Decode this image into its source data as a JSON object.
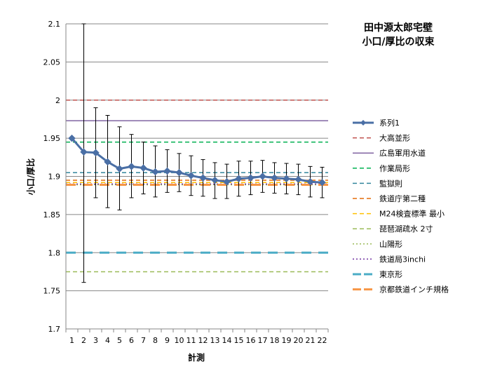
{
  "chart_data": {
    "type": "line",
    "title": [
      "田中源太郎宅壁",
      "小口/厚比の収束"
    ],
    "xlabel": "計測",
    "ylabel": "小口/厚比",
    "ylim": [
      1.7,
      2.1
    ],
    "yticks": [
      "1.7",
      "1.75",
      "1.8",
      "1.85",
      "1.9",
      "1.95",
      "2",
      "2.05",
      "2.1"
    ],
    "x": [
      "1",
      "2",
      "3",
      "4",
      "5",
      "6",
      "7",
      "8",
      "9",
      "10",
      "11",
      "12",
      "13",
      "14",
      "15",
      "16",
      "17",
      "18",
      "19",
      "20",
      "21",
      "22"
    ],
    "grid": "horizontal",
    "legend_position": "right",
    "series": [
      {
        "name": "系列1",
        "color": "#4a6fa5",
        "style": "line-diamond",
        "values": [
          1.95,
          1.932,
          1.931,
          1.919,
          1.91,
          1.913,
          1.911,
          1.906,
          1.907,
          1.905,
          1.901,
          1.898,
          1.895,
          1.893,
          1.897,
          1.898,
          1.9,
          1.898,
          1.897,
          1.896,
          1.893,
          1.892
        ],
        "error_upper": [
          1.95,
          2.1,
          1.99,
          1.98,
          1.965,
          1.955,
          1.945,
          1.94,
          1.935,
          1.93,
          1.927,
          1.922,
          1.918,
          1.916,
          1.92,
          1.92,
          1.921,
          1.918,
          1.917,
          1.916,
          1.913,
          1.912
        ],
        "error_lower": [
          1.95,
          1.761,
          1.872,
          1.859,
          1.856,
          1.872,
          1.877,
          1.873,
          1.879,
          1.88,
          1.875,
          1.874,
          1.871,
          1.871,
          1.874,
          1.876,
          1.879,
          1.878,
          1.877,
          1.876,
          1.873,
          1.872
        ]
      },
      {
        "name": "大高並形",
        "color": "#c0504d",
        "style": "dash",
        "value": 2.0
      },
      {
        "name": "広島軍用水道",
        "color": "#8064a2",
        "style": "solid",
        "value": 1.973
      },
      {
        "name": "作業局形",
        "color": "#00b050",
        "style": "dash",
        "value": 1.945
      },
      {
        "name": "監獄則",
        "color": "#31859c",
        "style": "dash",
        "value": 1.905
      },
      {
        "name": "鉄道庁第二種",
        "color": "#e46c0a",
        "style": "dash",
        "value": 1.895
      },
      {
        "name": "M24検査標準 最小",
        "color": "#ffc000",
        "style": "dash",
        "value": 1.892
      },
      {
        "name": "琵琶湖疏水 2寸",
        "color": "#9bbb59",
        "style": "dash",
        "value": 1.775
      },
      {
        "name": "山陽形",
        "color": "#9bbb59",
        "style": "dot",
        "value": 1.889
      },
      {
        "name": "鉄道局3inchi",
        "color": "#7030a0",
        "style": "dot",
        "value": 1.89
      },
      {
        "name": "東京形",
        "color": "#4bacc6",
        "style": "longdash",
        "value": 1.8
      },
      {
        "name": "京都鉄道インチ規格",
        "color": "#f79646",
        "style": "longdash",
        "value": 1.889
      }
    ]
  }
}
